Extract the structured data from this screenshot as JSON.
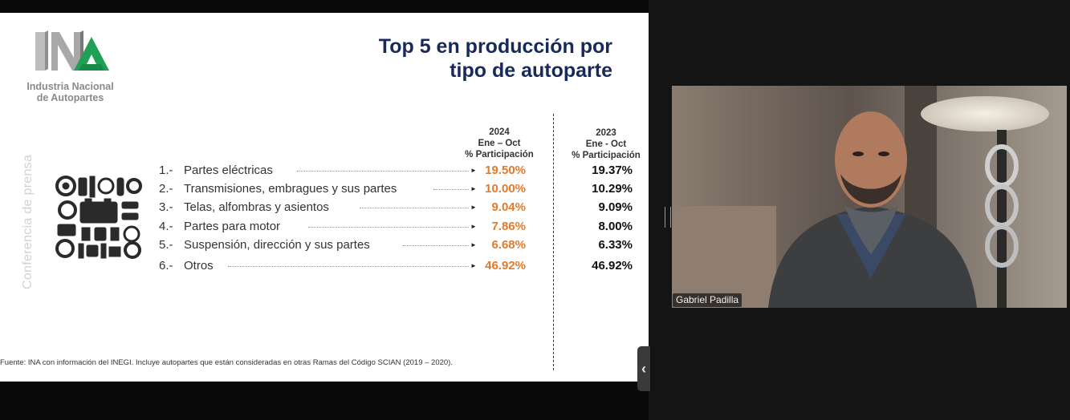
{
  "slide": {
    "org_name": "Industria Nacional\nde Autopartes",
    "logo_text": "INA",
    "title": "Top 5 en producción por\ntipo de autoparte",
    "vertical_label": "Conferencia de prensa",
    "col_2024": {
      "year": "2024",
      "period": "Ene – Oct",
      "metric": "% Participación"
    },
    "col_2023": {
      "year": "2023",
      "period": "Ene - Oct",
      "metric": "% Participación"
    },
    "rows": [
      {
        "num": "1.-",
        "label": "Partes eléctricas",
        "v2024": "19.50%",
        "v2023": "19.37%"
      },
      {
        "num": "2.-",
        "label": "Transmisiones, embragues y sus partes",
        "v2024": "10.00%",
        "v2023": "10.29%"
      },
      {
        "num": "3.-",
        "label": "Telas, alfombras y asientos",
        "v2024": "9.04%",
        "v2023": "9.09%"
      },
      {
        "num": "4.-",
        "label": "Partes para motor",
        "v2024": "7.86%",
        "v2023": "8.00%"
      },
      {
        "num": "5.-",
        "label": "Suspensión, dirección y sus partes",
        "v2024": "6.68%",
        "v2023": "6.33%"
      },
      {
        "num": "6.-",
        "label": "Otros",
        "v2024": "46.92%",
        "v2023": "46.92%"
      }
    ],
    "source": "Fuente: INA con información del INEGI. Incluye autopartes que están consideradas en otras Ramas del Código SCIAN (2019 – 2020).",
    "colors": {
      "title": "#182a5a",
      "accent_2024": "#e07b2e",
      "logo_green": "#1fa055"
    },
    "icons": {
      "parts": "auto-parts-icon",
      "arrow": "arrow-right-icon"
    }
  },
  "meeting": {
    "participant_name": "Gabriel Padilla",
    "collapse_glyph": "‹",
    "icons": {
      "collapse": "chevron-left-icon",
      "resize": "resize-handle-icon"
    }
  }
}
